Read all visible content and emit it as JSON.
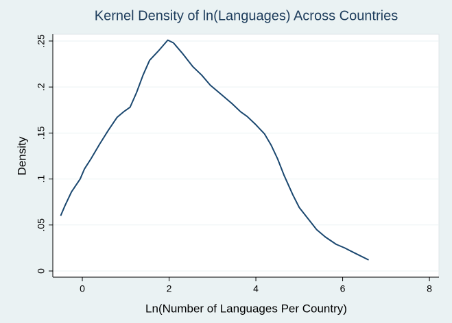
{
  "chart_data": {
    "type": "line",
    "title": "Kernel Density of ln(Languages) Across Countries",
    "x_label": "Ln(Number of Languages Per Country)",
    "y_label": "Density",
    "x": [
      -0.5,
      -0.4,
      -0.25,
      -0.05,
      0.05,
      0.2,
      0.4,
      0.6,
      0.8,
      0.95,
      1.1,
      1.25,
      1.4,
      1.55,
      1.75,
      1.97,
      2.1,
      2.3,
      2.55,
      2.75,
      2.95,
      3.2,
      3.45,
      3.65,
      3.8,
      4.0,
      4.2,
      4.35,
      4.5,
      4.65,
      4.85,
      5.0,
      5.2,
      5.4,
      5.6,
      5.85,
      6.05,
      6.3,
      6.6
    ],
    "values": [
      0.06,
      0.071,
      0.086,
      0.1,
      0.111,
      0.122,
      0.138,
      0.153,
      0.167,
      0.173,
      0.178,
      0.194,
      0.213,
      0.229,
      0.239,
      0.251,
      0.248,
      0.237,
      0.222,
      0.213,
      0.202,
      0.192,
      0.182,
      0.173,
      0.168,
      0.159,
      0.149,
      0.137,
      0.122,
      0.104,
      0.083,
      0.069,
      0.057,
      0.045,
      0.037,
      0.029,
      0.025,
      0.019,
      0.012
    ],
    "color": "#1a476f",
    "xlim": [
      -0.68,
      8.22
    ],
    "xticks": [
      0,
      2,
      4,
      6,
      8
    ],
    "ylim": [
      -0.0067,
      0.2574
    ],
    "yticks": [
      0,
      {
        "value": 0.05,
        "label": ".05"
      },
      {
        "value": 0.1,
        "label": ".1"
      },
      {
        "value": 0.15,
        "label": ".15"
      },
      {
        "value": 0.2,
        "label": ".2"
      },
      {
        "value": 0.25,
        "label": ".25"
      }
    ],
    "grid": true
  }
}
